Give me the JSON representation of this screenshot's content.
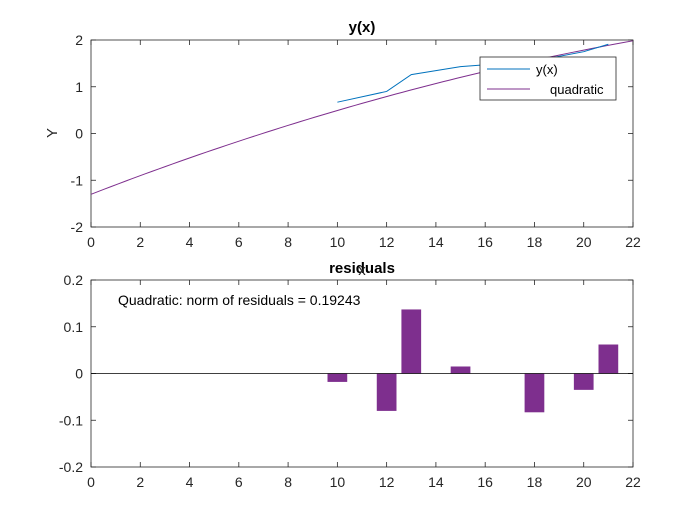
{
  "chart_data": [
    {
      "type": "line",
      "title": "y(x)",
      "xlabel": "",
      "ylabel": "Y",
      "xlim": [
        0,
        22
      ],
      "ylim": [
        -2,
        2
      ],
      "xticks": [
        "0",
        "2",
        "4",
        "6",
        "8",
        "10",
        "12",
        "14",
        "16",
        "18",
        "20",
        "22"
      ],
      "yticks": [
        "-2",
        "-1",
        "0",
        "1",
        "2"
      ],
      "legend_position": "top-right",
      "series": [
        {
          "name": "y(x)",
          "color": "#0072BD",
          "x": [
            10,
            12,
            13,
            15,
            18,
            20,
            21
          ],
          "y": [
            0.67,
            0.9,
            1.26,
            1.43,
            1.55,
            1.75,
            1.91
          ]
        },
        {
          "name": "quadratic",
          "color": "#7E2F8E",
          "coeffs": {
            "a": -0.0025,
            "b": 0.2042,
            "c": -1.3
          },
          "x_range": [
            0,
            22
          ]
        }
      ]
    },
    {
      "type": "bar",
      "title": "residuals",
      "xlabel": "x",
      "ylabel": "",
      "xlim": [
        0,
        22
      ],
      "ylim": [
        -0.2,
        0.2
      ],
      "xticks": [
        "0",
        "2",
        "4",
        "6",
        "8",
        "10",
        "12",
        "14",
        "16",
        "18",
        "20",
        "22"
      ],
      "yticks": [
        "-0.2",
        "-0.1",
        "0",
        "0.1",
        "0.2"
      ],
      "annotation": "Quadratic: norm of residuals = 0.19243",
      "color": "#7E2F8E",
      "x": [
        10,
        12,
        13,
        15,
        18,
        20,
        21
      ],
      "values": [
        -0.018,
        -0.08,
        0.137,
        0.015,
        -0.083,
        -0.035,
        0.062
      ]
    }
  ]
}
